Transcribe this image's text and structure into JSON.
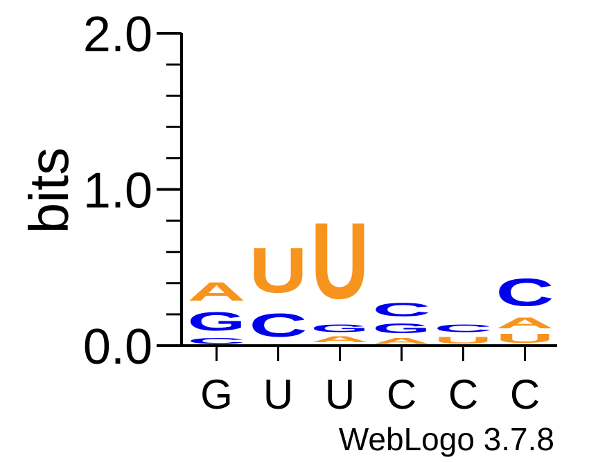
{
  "chart_data": {
    "type": "sequence-logo",
    "ylabel": "bits",
    "ylim": [
      0,
      2
    ],
    "y_ticks": [
      {
        "value": 0,
        "label": "0.0"
      },
      {
        "value": 1,
        "label": "1.0"
      },
      {
        "value": 2,
        "label": "2.0"
      }
    ],
    "minor_tick_step": 0.2,
    "colors": {
      "A": "#f7941d",
      "U": "#f7941d",
      "C": "#0000ee",
      "G": "#0000ee"
    },
    "positions": [
      {
        "label": "G",
        "stack": [
          {
            "letter": "C",
            "height": 0.06
          },
          {
            "letter": "G",
            "height": 0.19
          },
          {
            "letter": "A",
            "height": 0.19
          }
        ]
      },
      {
        "label": "U",
        "stack": [
          {
            "letter": "A",
            "height": 0.01
          },
          {
            "letter": "C",
            "height": 0.24
          },
          {
            "letter": "U",
            "height": 0.46
          }
        ]
      },
      {
        "label": "U",
        "stack": [
          {
            "letter": "C",
            "height": 0.01
          },
          {
            "letter": "A",
            "height": 0.06
          },
          {
            "letter": "G",
            "height": 0.08
          },
          {
            "letter": "U",
            "height": 0.78
          }
        ]
      },
      {
        "label": "C",
        "stack": [
          {
            "letter": "A",
            "height": 0.06
          },
          {
            "letter": "G",
            "height": 0.1
          },
          {
            "letter": "C",
            "height": 0.14
          }
        ]
      },
      {
        "label": "C",
        "stack": [
          {
            "letter": "U",
            "height": 0.07
          },
          {
            "letter": "C",
            "height": 0.08
          }
        ]
      },
      {
        "label": "C",
        "stack": [
          {
            "letter": "U",
            "height": 0.09
          },
          {
            "letter": "A",
            "height": 0.11
          },
          {
            "letter": "C",
            "height": 0.28
          }
        ]
      }
    ]
  },
  "footer": {
    "credit": "WebLogo 3.7.8"
  }
}
